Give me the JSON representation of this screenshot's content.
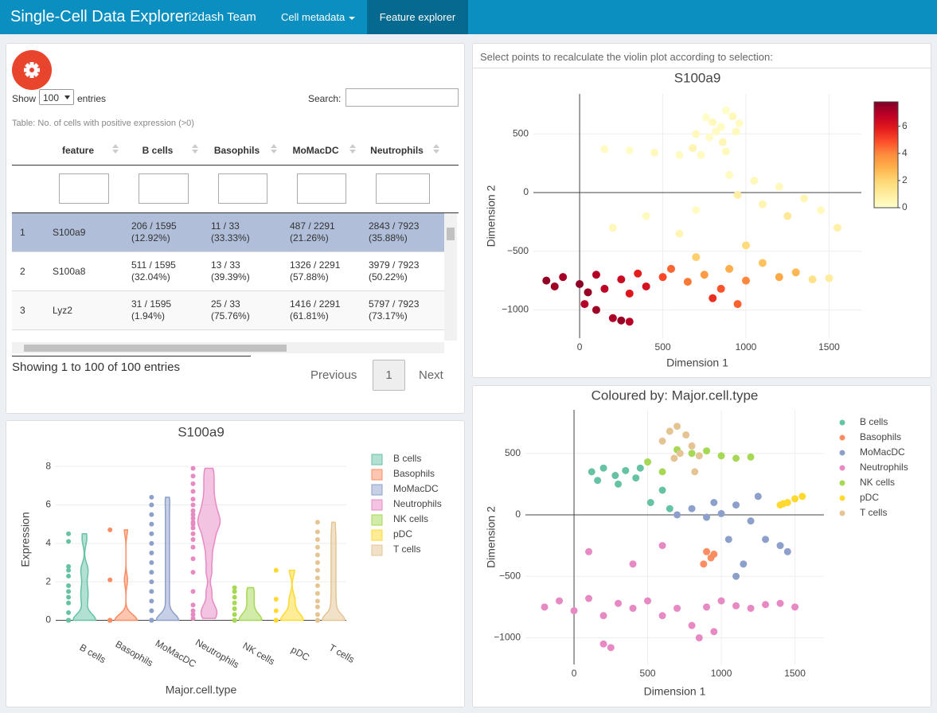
{
  "navbar": {
    "brand": "Single-Cell Data Explorer",
    "team": "i2dash Team",
    "tabs": [
      "Cell metadata",
      "Feature explorer"
    ]
  },
  "table_panel": {
    "show": "Show",
    "entries_select": "100",
    "entries": "entries",
    "search": "Search:",
    "caption": "Table: No. of cells with positive expression (>0)",
    "columns": [
      "feature",
      "B cells",
      "Basophils",
      "MoMacDC",
      "Neutrophils"
    ],
    "rows": [
      {
        "index": 1,
        "feature": "S100a9",
        "cells": [
          [
            "206 / 1595",
            "(12.92%)"
          ],
          [
            "11 / 33",
            "(33.33%)"
          ],
          [
            "487 / 2291",
            "(21.26%)"
          ],
          [
            "2843 / 7923",
            "(35.88%)"
          ]
        ]
      },
      {
        "index": 2,
        "feature": "S100a8",
        "cells": [
          [
            "511 / 1595",
            "(32.04%)"
          ],
          [
            "13 / 33",
            "(39.39%)"
          ],
          [
            "1326 / 2291",
            "(57.88%)"
          ],
          [
            "3979 / 7923",
            "(50.22%)"
          ]
        ]
      },
      {
        "index": 3,
        "feature": "Lyz2",
        "cells": [
          [
            "31 / 1595",
            "(1.94%)"
          ],
          [
            "25 / 33",
            "(75.76%)"
          ],
          [
            "1416 / 2291",
            "(61.81%)"
          ],
          [
            "5797 / 7923",
            "(73.17%)"
          ]
        ]
      }
    ],
    "info": "Showing 1 to 100 of 100 entries",
    "pagination": [
      "Previous",
      "1",
      "Next"
    ]
  },
  "scatter_note": "Select points to recalculate the violin plot according to selection:",
  "chart_data": [
    {
      "type": "violin",
      "title": "S100a9",
      "xlabel": "Major.cell.type",
      "ylabel": "Expression",
      "categories": [
        "B cells",
        "Basophils",
        "MoMacDC",
        "Neutrophils",
        "NK cells",
        "pDC",
        "T cells"
      ],
      "ylim": [
        -0.35,
        8.75
      ],
      "yticks": [
        0,
        2,
        4,
        6,
        8
      ],
      "grid": true,
      "series": [
        {
          "name": "B cells",
          "color": "#66c2a5",
          "values": [
            0,
            0,
            0,
            0,
            0,
            0,
            0,
            0.4,
            0.9,
            1.2,
            1.5,
            1.8,
            2.3,
            2.6,
            2.8,
            4.1,
            4.5
          ]
        },
        {
          "name": "Basophils",
          "color": "#fc8d62",
          "values": [
            0,
            0,
            0,
            0,
            0,
            0,
            0,
            2.1,
            4.7
          ]
        },
        {
          "name": "MoMacDC",
          "color": "#8da0cb",
          "values": [
            0,
            0,
            0,
            0,
            0,
            0,
            0,
            0,
            0.5,
            1,
            1.5,
            2,
            2.5,
            3,
            3.5,
            4,
            4.5,
            5,
            5.5,
            6,
            6.4
          ]
        },
        {
          "name": "Neutrophils",
          "color": "#e78ac3",
          "values": [
            0.1,
            0.3,
            0.5,
            0.8,
            1.5,
            2.5,
            3.2,
            3.8,
            4.2,
            4.5,
            4.8,
            5,
            5.1,
            5.3,
            5.5,
            5.7,
            6,
            6.3,
            6.7,
            7.1,
            7.5,
            7.9
          ]
        },
        {
          "name": "NK cells",
          "color": "#a6d854",
          "values": [
            0,
            0,
            0,
            0,
            0,
            0,
            0,
            0.3,
            0.6,
            0.9,
            1.2,
            1.5,
            1.7
          ]
        },
        {
          "name": "pDC",
          "color": "#ffd92f",
          "values": [
            0,
            0,
            0,
            0,
            0.5,
            1.1,
            2.6
          ]
        },
        {
          "name": "T cells",
          "color": "#e5c494",
          "values": [
            0,
            0,
            0,
            0,
            0,
            0,
            0,
            0,
            0.3,
            0.7,
            1,
            1.4,
            1.8,
            2.2,
            2.6,
            3,
            3.4,
            3.8,
            4.2,
            4.6,
            5.1
          ]
        }
      ]
    },
    {
      "type": "scatter",
      "title": "S100a9",
      "xlabel": "Dimension 1",
      "ylabel": "Dimension 2",
      "xlim": [
        -278,
        1694
      ],
      "ylim": [
        -1241,
        841
      ],
      "xticks": [
        0,
        500,
        1000,
        1500
      ],
      "yticks": [
        {
          "value": -1000,
          "label": "−1000"
        },
        {
          "value": -500,
          "label": "−500"
        },
        0,
        500
      ],
      "grid": true,
      "zeroline": true,
      "colorscale": [
        "#ffffcc",
        "#ffeda0",
        "#fed976",
        "#feb24c",
        "#fd8d3c",
        "#fc4e2a",
        "#e31a1c",
        "#bd0026",
        "#800026"
      ],
      "clim": [
        0,
        7.8
      ],
      "cticks": [
        0,
        2,
        4,
        6
      ],
      "x": [
        760,
        800,
        850,
        880,
        920,
        960,
        700,
        780,
        860,
        820,
        940,
        680,
        730,
        880,
        150,
        300,
        450,
        600,
        900,
        1050,
        1200,
        1350,
        1450,
        1550,
        1250,
        1100,
        950,
        400,
        600,
        700,
        200,
        650,
        750,
        850,
        900,
        1000,
        1100,
        1200,
        1300,
        1400,
        1500,
        800,
        950,
        700,
        1000,
        -200,
        -100,
        0,
        100,
        150,
        250,
        350,
        400,
        500,
        550,
        50,
        -150,
        300,
        30,
        100,
        200,
        250,
        300
      ],
      "y": [
        640,
        600,
        560,
        700,
        650,
        590,
        500,
        470,
        430,
        520,
        520,
        380,
        320,
        350,
        370,
        360,
        340,
        320,
        150,
        100,
        50,
        -50,
        -150,
        -300,
        -200,
        -100,
        -20,
        -200,
        -350,
        -150,
        -300,
        -760,
        -700,
        -820,
        -650,
        -750,
        -600,
        -720,
        -680,
        -740,
        -730,
        -900,
        -950,
        -550,
        -450,
        -750,
        -720,
        -780,
        -700,
        -820,
        -740,
        -690,
        -800,
        -720,
        -650,
        -850,
        -800,
        -860,
        -950,
        -1000,
        -1070,
        -1090,
        -1100
      ],
      "values": [
        0.1,
        0.3,
        0.2,
        0.1,
        0.4,
        0.2,
        0.3,
        0.1,
        0.5,
        0.2,
        0.3,
        0.6,
        0.2,
        0.3,
        0.2,
        0.1,
        0.3,
        0.2,
        0.2,
        0.4,
        0.3,
        0.5,
        0.3,
        0.8,
        1.2,
        0.6,
        0.9,
        0.3,
        0.5,
        0.2,
        0.4,
        4.2,
        3.5,
        4.8,
        3,
        4,
        2.5,
        3.2,
        2.8,
        1.5,
        1,
        5.5,
        4.6,
        2.2,
        1.8,
        7.5,
        7.2,
        7.6,
        7,
        6.8,
        6.5,
        5.8,
        6.2,
        5,
        4.5,
        7.4,
        7.3,
        6,
        7,
        7.3,
        7.1,
        7.4,
        6.9
      ]
    },
    {
      "type": "scatter",
      "title": "Coloured by: Major.cell.type",
      "xlabel": "Dimension 1",
      "ylabel": "Dimension 2",
      "xlim": [
        -330,
        1697
      ],
      "ylim": [
        -1217,
        854
      ],
      "xticks": [
        0,
        500,
        1000,
        1500
      ],
      "yticks": [
        {
          "value": -1000,
          "label": "−1000"
        },
        {
          "value": -500,
          "label": "−500"
        },
        0,
        500
      ],
      "grid": true,
      "zeroline": true,
      "series": [
        {
          "name": "B cells",
          "color": "#66c2a5",
          "x": [
            120,
            200,
            280,
            350,
            420,
            160,
            300,
            450,
            600,
            520,
            650
          ],
          "y": [
            350,
            380,
            320,
            360,
            300,
            280,
            250,
            380,
            200,
            100,
            50
          ]
        },
        {
          "name": "Basophils",
          "color": "#fc8d62",
          "x": [
            900,
            930,
            880,
            950
          ],
          "y": [
            -300,
            -350,
            -400,
            -320
          ]
        },
        {
          "name": "MoMacDC",
          "color": "#8da0cb",
          "x": [
            700,
            800,
            900,
            1000,
            1100,
            1200,
            1300,
            1400,
            1450,
            1250,
            1050,
            1150,
            1100,
            950
          ],
          "y": [
            0,
            50,
            -20,
            10,
            80,
            -50,
            -200,
            -250,
            -300,
            150,
            -200,
            -400,
            -500,
            100
          ]
        },
        {
          "name": "Neutrophils",
          "color": "#e78ac3",
          "x": [
            -200,
            -100,
            0,
            100,
            200,
            300,
            400,
            500,
            600,
            700,
            800,
            900,
            1000,
            1100,
            1200,
            1300,
            1400,
            1500,
            850,
            950,
            200,
            250,
            400,
            600,
            100
          ],
          "y": [
            -750,
            -700,
            -780,
            -680,
            -820,
            -720,
            -760,
            -700,
            -820,
            -760,
            -900,
            -750,
            -700,
            -740,
            -760,
            -730,
            -720,
            -750,
            -1000,
            -950,
            -1050,
            -1080,
            -400,
            -250,
            -300
          ]
        },
        {
          "name": "NK cells",
          "color": "#a6d854",
          "x": [
            700,
            800,
            900,
            1000,
            1100,
            1200,
            500,
            600
          ],
          "y": [
            530,
            500,
            520,
            480,
            460,
            470,
            430,
            350
          ]
        },
        {
          "name": "pDC",
          "color": "#ffd92f",
          "x": [
            1400,
            1450,
            1500,
            1550,
            1420
          ],
          "y": [
            80,
            100,
            130,
            150,
            90
          ]
        },
        {
          "name": "T cells",
          "color": "#e5c494",
          "x": [
            600,
            650,
            700,
            760,
            800,
            720,
            850,
            680,
            820
          ],
          "y": [
            600,
            680,
            720,
            650,
            560,
            500,
            480,
            460,
            350
          ]
        }
      ]
    }
  ]
}
